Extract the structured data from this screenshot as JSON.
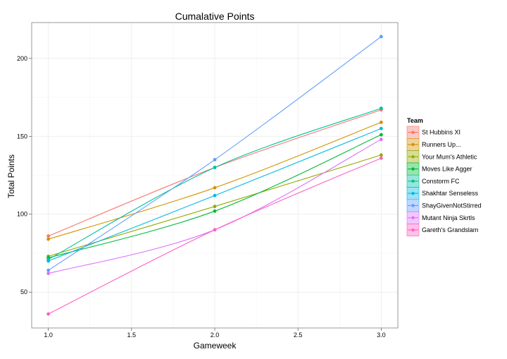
{
  "chart_data": {
    "type": "line",
    "title": "Cumalative Points",
    "xlabel": "Gameweek",
    "ylabel": "Total Points",
    "x": [
      1,
      2,
      3
    ],
    "xlim": [
      0.9,
      3.1
    ],
    "ylim": [
      27,
      223
    ],
    "x_ticks": [
      "1.0",
      "1.5",
      "2.0",
      "2.5",
      "3.0"
    ],
    "y_ticks": [
      "50",
      "100",
      "150",
      "200"
    ],
    "grid": true,
    "legend": {
      "title": "Team",
      "placement": "right"
    },
    "series": [
      {
        "name": "St Hubbins XI",
        "color": "#F8766D",
        "values": [
          86,
          130,
          167
        ]
      },
      {
        "name": "Runners Up...",
        "color": "#D39200",
        "values": [
          84,
          117,
          159
        ]
      },
      {
        "name": "Your Mum's Athletic",
        "color": "#93AA00",
        "values": [
          73,
          105,
          138
        ]
      },
      {
        "name": "Moves Like Agger",
        "color": "#00BA38",
        "values": [
          72,
          102,
          151
        ]
      },
      {
        "name": "Constorm FC",
        "color": "#00C19F",
        "values": [
          71,
          130,
          168
        ]
      },
      {
        "name": "Shakhtar Senseless",
        "color": "#00B9E3",
        "values": [
          70,
          112,
          155
        ]
      },
      {
        "name": "ShayGivenNotStirred",
        "color": "#619CFF",
        "values": [
          64,
          135,
          214
        ]
      },
      {
        "name": "Mutant Ninja Skrtls",
        "color": "#DB72FB",
        "values": [
          62,
          90,
          148
        ]
      },
      {
        "name": "Gareth's Grandslam",
        "color": "#FF61C3",
        "values": [
          36,
          90,
          136
        ]
      }
    ]
  }
}
